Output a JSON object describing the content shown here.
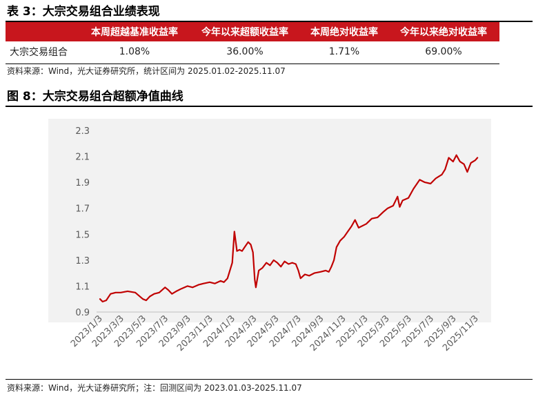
{
  "table_section": {
    "title": "表 3：大宗交易组合业绩表现",
    "columns": [
      "",
      "本周超越基准收益率",
      "今年以来超额收益率",
      "本周绝对收益率",
      "今年以来绝对收益率"
    ],
    "rows": [
      [
        "大宗交易组合",
        "1.08%",
        "36.00%",
        "1.71%",
        "69.00%"
      ]
    ],
    "source": "资料来源：Wind，光大证券研究所，统计区间为 2025.01.02-2025.11.07"
  },
  "figure_section": {
    "title": "图 8：大宗交易组合超额净值曲线",
    "source": "资料来源：Wind，光大证券研究所；注：回测区间为 2023.01.03-2025.11.07"
  },
  "colors": {
    "accent_red": "#c8161d",
    "line_red": "#c00000",
    "plot_background": "#f2f2f2",
    "tick_text": "#595959"
  },
  "chart_data": {
    "type": "line",
    "title": "",
    "xlabel": "",
    "ylabel": "",
    "ylim": [
      0.9,
      2.3
    ],
    "yticks": [
      0.9,
      1.1,
      1.3,
      1.5,
      1.7,
      1.9,
      2.1,
      2.3
    ],
    "ytick_labels": [
      "0.9",
      "1.1",
      "1.3",
      "1.5",
      "1.7",
      "1.9",
      "2.1",
      "2.3"
    ],
    "xticks": [
      "2023-01-03",
      "2023-03-03",
      "2023-05-03",
      "2023-07-03",
      "2023-09-03",
      "2023-11-03",
      "2024-01-03",
      "2024-03-03",
      "2024-05-03",
      "2024-07-03",
      "2024-09-03",
      "2024-11-03",
      "2025-01-03",
      "2025-03-03",
      "2025-05-03",
      "2025-07-03",
      "2025-09-03",
      "2025-11-03"
    ],
    "xtick_labels": [
      "2023/1/3",
      "2023/3/3",
      "2023/5/3",
      "2023/7/3",
      "2023/9/3",
      "2023/11/3",
      "2024/1/3",
      "2024/3/3",
      "2024/5/3",
      "2024/7/3",
      "2024/9/3",
      "2024/11/3",
      "2025/1/3",
      "2025/3/3",
      "2025/5/3",
      "2025/7/3",
      "2025/9/3",
      "2025/11/3"
    ],
    "grid": false,
    "legend": "none",
    "series": [
      {
        "x": [
          "2023-01-03",
          "2023-01-10",
          "2023-01-20",
          "2023-02-01",
          "2023-02-15",
          "2023-03-01",
          "2023-03-20",
          "2023-04-10",
          "2023-05-01",
          "2023-05-10",
          "2023-05-20",
          "2023-06-01",
          "2023-06-15",
          "2023-07-01",
          "2023-07-10",
          "2023-07-20",
          "2023-08-01",
          "2023-08-15",
          "2023-09-01",
          "2023-09-15",
          "2023-10-01",
          "2023-10-15",
          "2023-11-01",
          "2023-11-15",
          "2023-12-01",
          "2023-12-10",
          "2023-12-20",
          "2024-01-02",
          "2024-01-08",
          "2024-01-15",
          "2024-01-22",
          "2024-01-29",
          "2024-02-05",
          "2024-02-15",
          "2024-02-22",
          "2024-02-28",
          "2024-03-04",
          "2024-03-07",
          "2024-03-15",
          "2024-03-25",
          "2024-04-05",
          "2024-04-15",
          "2024-04-25",
          "2024-05-05",
          "2024-05-15",
          "2024-05-25",
          "2024-06-05",
          "2024-06-15",
          "2024-06-25",
          "2024-07-02",
          "2024-07-08",
          "2024-07-20",
          "2024-08-01",
          "2024-08-15",
          "2024-09-01",
          "2024-09-15",
          "2024-09-24",
          "2024-10-01",
          "2024-10-08",
          "2024-10-15",
          "2024-10-25",
          "2024-11-05",
          "2024-11-15",
          "2024-11-25",
          "2024-12-05",
          "2024-12-15",
          "2025-01-05",
          "2025-01-20",
          "2025-02-05",
          "2025-02-20",
          "2025-03-05",
          "2025-03-20",
          "2025-04-01",
          "2025-04-07",
          "2025-04-15",
          "2025-05-01",
          "2025-05-15",
          "2025-06-01",
          "2025-06-15",
          "2025-07-01",
          "2025-07-15",
          "2025-08-01",
          "2025-08-10",
          "2025-08-20",
          "2025-09-01",
          "2025-09-10",
          "2025-09-20",
          "2025-10-01",
          "2025-10-10",
          "2025-10-20",
          "2025-11-01",
          "2025-11-07"
        ],
        "y": [
          1.0,
          0.98,
          0.99,
          1.04,
          1.05,
          1.05,
          1.06,
          1.05,
          1.0,
          0.99,
          1.02,
          1.04,
          1.05,
          1.09,
          1.07,
          1.04,
          1.06,
          1.08,
          1.1,
          1.09,
          1.11,
          1.12,
          1.13,
          1.12,
          1.14,
          1.13,
          1.16,
          1.28,
          1.52,
          1.37,
          1.38,
          1.37,
          1.4,
          1.44,
          1.42,
          1.36,
          1.15,
          1.09,
          1.22,
          1.24,
          1.28,
          1.26,
          1.3,
          1.28,
          1.25,
          1.29,
          1.27,
          1.28,
          1.27,
          1.22,
          1.16,
          1.19,
          1.18,
          1.2,
          1.21,
          1.22,
          1.21,
          1.25,
          1.3,
          1.4,
          1.45,
          1.48,
          1.52,
          1.56,
          1.61,
          1.55,
          1.58,
          1.62,
          1.63,
          1.67,
          1.7,
          1.72,
          1.79,
          1.71,
          1.76,
          1.78,
          1.85,
          1.92,
          1.9,
          1.89,
          1.93,
          1.96,
          2.0,
          2.09,
          2.06,
          2.11,
          2.06,
          2.04,
          1.98,
          2.05,
          2.07,
          2.09
        ]
      }
    ]
  }
}
